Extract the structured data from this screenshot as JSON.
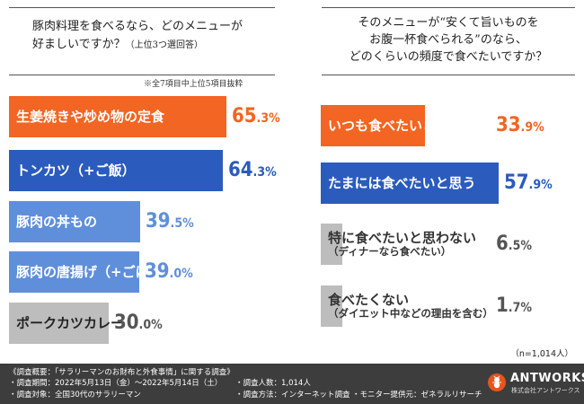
{
  "left_question": {
    "line1": "豚肉料理を食べるなら、どのメニューが",
    "line2": "好ましいですか？",
    "line2_small": "（上位3つ選回答）",
    "note": "※全7項目中上位5項目抜粋"
  },
  "right_question": {
    "line1": "そのメニューが“安くて旨いものを",
    "line2": "お腹一杯食べられる”のなら、",
    "line3": "どのくらいの頻度で食べたいですか？"
  },
  "colors": {
    "orange": "#f26522",
    "blue": "#2b5bbd",
    "light_blue": "#5f8fdb",
    "gray": "#bdbdbd"
  },
  "chart_data": [
    {
      "type": "bar",
      "orientation": "horizontal",
      "categories": [
        "生姜焼きや炒め物の定食",
        "トンカツ（+ご飯）",
        "豚肉の丼もの",
        "豚肉の唐揚げ（+ごはん）",
        "ポークカツカレー"
      ],
      "values": [
        65.3,
        64.3,
        39.5,
        39.0,
        30.0
      ],
      "value_labels": [
        {
          "big": "65",
          "small": ".3%"
        },
        {
          "big": "64",
          "small": ".3%"
        },
        {
          "big": "39",
          "small": ".5%"
        },
        {
          "big": "39",
          "small": ".0%"
        },
        {
          "big": "30",
          "small": ".0%"
        }
      ],
      "bar_colors": [
        "#f26522",
        "#2b5bbd",
        "#5f8fdb",
        "#5f8fdb",
        "#bdbdbd"
      ],
      "label_colors": [
        "#ffffff",
        "#ffffff",
        "#ffffff",
        "#ffffff",
        "#222222"
      ],
      "value_colors": [
        "#f26522",
        "#2b5bbd",
        "#5f8fdb",
        "#5f8fdb",
        "#555555"
      ],
      "xlim": [
        0,
        100
      ]
    },
    {
      "type": "bar",
      "orientation": "horizontal",
      "categories": [
        "いつも食べたいと思う",
        "たまには食べたいと思う",
        "特に食べたいと思わない",
        "食べたくない"
      ],
      "sublabels": [
        "",
        "",
        "（ディナーなら食べたい）",
        "（ダイエット中などの理由を含む）"
      ],
      "values": [
        33.9,
        57.9,
        6.5,
        1.7
      ],
      "value_labels": [
        {
          "big": "33",
          "small": ".9%"
        },
        {
          "big": "57",
          "small": ".9%"
        },
        {
          "big": "6",
          "small": ".5%"
        },
        {
          "big": "1",
          "small": ".7%"
        }
      ],
      "bar_colors": [
        "#f26522",
        "#2b5bbd",
        "#bdbdbd",
        "#bdbdbd"
      ],
      "label_colors": [
        "#ffffff",
        "#ffffff",
        "#333333",
        "#333333"
      ],
      "value_colors": [
        "#f26522",
        "#2b5bbd",
        "#555555",
        "#555555"
      ],
      "xlim": [
        0,
        100
      ],
      "n_note": "（n=1,014人）"
    }
  ],
  "footer": {
    "title": "《調査概要：「サラリーマンのお財布と外食事情」に関する調査》",
    "period": "・調査期間：2022年5月13日（金）～2022年5月14日（土）",
    "target": "・調査対象：全国30代のサラリーマン",
    "count": "・調査人数：1,014人",
    "method": "・調査方法：インターネット調査",
    "provider": "・モニター提供元：ゼネラルリサーチ",
    "logo_text": "ANTWORKS",
    "logo_sub": "株式会社アントワークス"
  }
}
